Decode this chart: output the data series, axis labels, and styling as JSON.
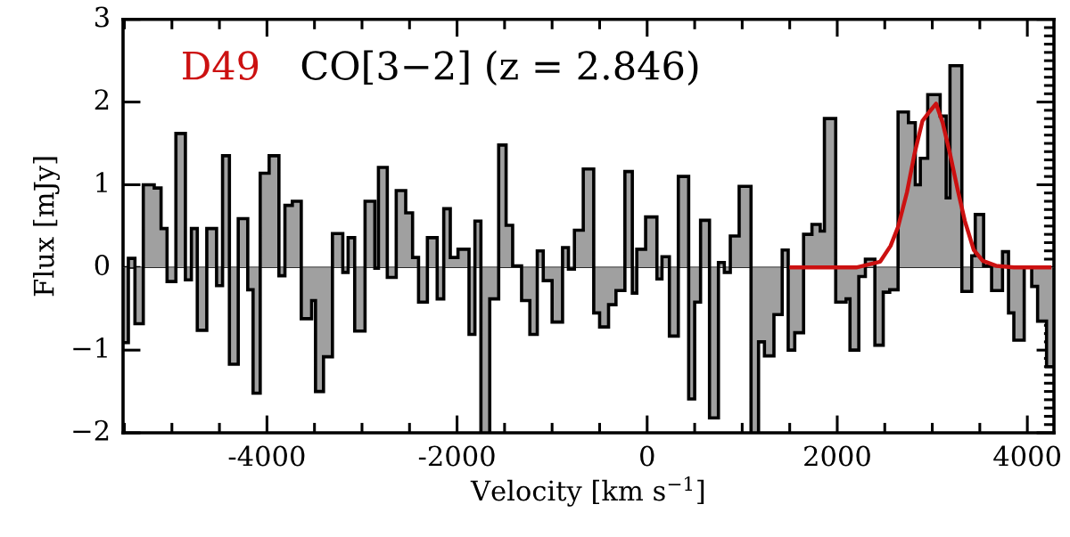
{
  "chart_data": {
    "type": "histogram",
    "title": "D49",
    "subtitle": "CO[3−2] (z = 2.846)",
    "xlabel": "Velocity [km s$^{−1}$]",
    "ylabel": "Flux [mJy]",
    "bins": [
      -5514,
      -5458,
      -5389,
      -5301,
      -5186,
      -5114,
      -5051,
      -4958,
      -4858,
      -4795,
      -4733,
      -4633,
      -4530,
      -4467,
      -4395,
      -4302,
      -4202,
      -4146,
      -4071,
      -3977,
      -3874,
      -3811,
      -3733,
      -3639,
      -3530,
      -3489,
      -3405,
      -3311,
      -3202,
      -3146,
      -3077,
      -2968,
      -2865,
      -2827,
      -2734,
      -2640,
      -2540,
      -2468,
      -2405,
      -2312,
      -2209,
      -2140,
      -2071,
      -1990,
      -1874,
      -1812,
      -1749,
      -1656,
      -1562,
      -1484,
      -1415,
      -1321,
      -1234,
      -1156,
      -1093,
      -1000,
      -890,
      -828,
      -765,
      -672,
      -562,
      -500,
      -406,
      -328,
      -234,
      -156,
      -109,
      -16,
      103,
      156,
      234,
      328,
      437,
      500,
      562,
      656,
      750,
      812,
      875,
      968,
      1093,
      1172,
      1234,
      1334,
      1421,
      1484,
      1553,
      1646,
      1734,
      1821,
      1865,
      1984,
      2093,
      2134,
      2227,
      2296,
      2396,
      2484,
      2552,
      2640,
      2749,
      2821,
      2874,
      2952,
      3083,
      3146,
      3186,
      3311,
      3415,
      3452,
      3540,
      3624,
      3739,
      3802,
      3858,
      3967,
      4046,
      4108,
      4202,
      4280
    ],
    "values": [
      -0.91,
      0.11,
      -0.68,
      1.0,
      0.96,
      0.47,
      -0.17,
      1.62,
      -0.15,
      0.47,
      -0.76,
      0.47,
      -0.22,
      1.35,
      -1.17,
      0.59,
      -0.27,
      -1.52,
      1.14,
      1.35,
      -0.1,
      0.75,
      0.8,
      -0.62,
      -0.4,
      -1.5,
      -1.08,
      0.41,
      -0.06,
      0.36,
      -0.77,
      0.8,
      -0.01,
      1.21,
      -0.12,
      0.93,
      0.66,
      0.12,
      -0.42,
      0.36,
      -0.38,
      0.71,
      0.12,
      0.22,
      -0.81,
      0.56,
      -2.0,
      -0.38,
      1.48,
      0.51,
      0.02,
      -0.4,
      -0.81,
      0.2,
      -0.16,
      -0.66,
      0.24,
      -0.02,
      0.45,
      1.19,
      -0.55,
      -0.72,
      -0.45,
      -0.28,
      1.16,
      -0.31,
      0.22,
      0.61,
      -0.14,
      0.13,
      -0.83,
      1.1,
      -1.59,
      -0.42,
      0.57,
      -1.82,
      0.06,
      -0.06,
      0.38,
      0.98,
      -2.0,
      -0.9,
      -1.07,
      -0.57,
      0.21,
      -1.0,
      -0.79,
      0.4,
      0.52,
      0.44,
      1.8,
      -0.42,
      -0.38,
      -1.0,
      -0.11,
      0.1,
      -0.94,
      -0.3,
      -0.27,
      1.88,
      1.75,
      1.0,
      1.32,
      2.09,
      1.83,
      0.84,
      2.44,
      -0.29,
      0.14,
      0.64,
      0.02,
      -0.28,
      0.19,
      -0.55,
      -0.88,
      0.0,
      -0.23,
      -0.65,
      -1.2
    ],
    "color": "#a0a0a0",
    "series": [
      {
        "type": "line",
        "color": "#cc1111",
        "x": [
          1518,
          2200,
          2452,
          2561,
          2640,
          2734,
          2812,
          2896,
          2968,
          3040,
          3109,
          3187,
          3265,
          3343,
          3437,
          3531,
          3671,
          3858,
          4233
        ],
        "values": [
          0,
          0,
          0.07,
          0.26,
          0.49,
          0.91,
          1.37,
          1.77,
          1.88,
          1.98,
          1.75,
          1.37,
          0.95,
          0.56,
          0.21,
          0.08,
          0.02,
          0,
          0
        ]
      }
    ],
    "ref_lines": [
      {
        "axis": "y",
        "value": 0,
        "color": "#000000"
      }
    ],
    "xlim": [
      -5514,
      4280
    ],
    "ylim": [
      -2,
      3
    ],
    "xticks": [
      -4000,
      -2000,
      0,
      2000,
      4000
    ],
    "yticks": [
      -2,
      -1,
      0,
      1,
      2,
      3
    ],
    "grid": false,
    "legend": false,
    "line_style": "solid",
    "marker": "none"
  }
}
